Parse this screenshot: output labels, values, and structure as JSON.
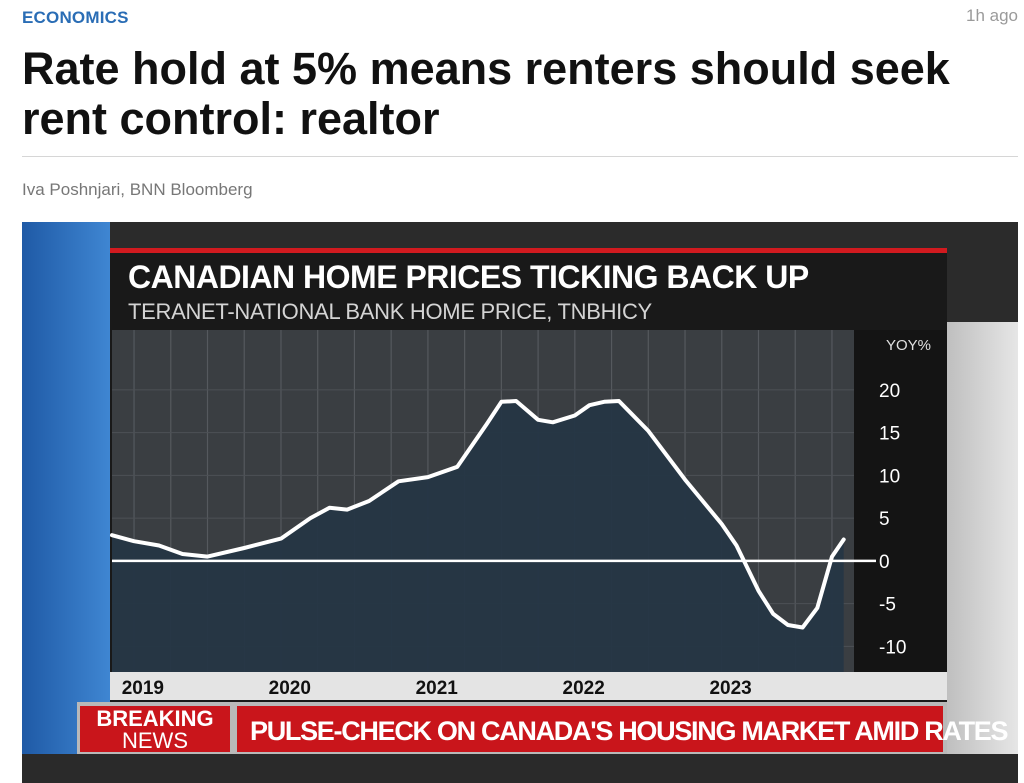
{
  "article": {
    "section": "ECONOMICS",
    "time_ago": "1h ago",
    "headline": "Rate hold at 5% means renters should seek rent control: realtor",
    "byline": "Iva Poshnjari, BNN Bloomberg"
  },
  "broadcast": {
    "breaking_line1": "BREAKING",
    "breaking_line2": "NEWS",
    "ticker": "PULSE-CHECK ON CANADA'S HOUSING MARKET AMID RATES"
  },
  "colors": {
    "section_blue": "#2a6db5",
    "breaking_red": "#c9151b",
    "chart_fill": "#253645",
    "chart_line": "#ffffff"
  },
  "chart_data": {
    "type": "area",
    "title": "CANADIAN HOME PRICES TICKING BACK UP",
    "subtitle": "TERANET-NATIONAL BANK HOME PRICE, TNBHICY",
    "ylabel": "YOY%",
    "ylim": [
      -13,
      27
    ],
    "y_ticks": [
      "20",
      "15",
      "10",
      "5",
      "0",
      "-5",
      "-10"
    ],
    "y_tick_values": [
      20,
      15,
      10,
      5,
      0,
      -5,
      -10
    ],
    "x_ticks": [
      "2019",
      "2020",
      "2021",
      "2022",
      "2023"
    ],
    "x_tick_values": [
      2019.0,
      2020.0,
      2021.0,
      2022.0,
      2023.0
    ],
    "xlim": [
      2018.85,
      2023.9
    ],
    "grid": true,
    "series": [
      {
        "x": [
          2018.85,
          2019.0,
          2019.17,
          2019.33,
          2019.5,
          2019.75,
          2020.0,
          2020.2,
          2020.33,
          2020.45,
          2020.6,
          2020.8,
          2021.0,
          2021.2,
          2021.4,
          2021.5,
          2021.6,
          2021.75,
          2021.85,
          2022.0,
          2022.1,
          2022.2,
          2022.3,
          2022.5,
          2022.75,
          2023.0,
          2023.1,
          2023.25,
          2023.35,
          2023.45,
          2023.55,
          2023.65,
          2023.75,
          2023.83
        ],
        "values": [
          3.0,
          2.3,
          1.8,
          0.8,
          0.5,
          1.5,
          2.6,
          5.0,
          6.2,
          6.0,
          7.0,
          9.3,
          9.8,
          11.0,
          16.0,
          18.6,
          18.7,
          16.5,
          16.2,
          17.0,
          18.2,
          18.6,
          18.7,
          15.2,
          9.5,
          4.3,
          1.8,
          -3.5,
          -6.2,
          -7.5,
          -7.8,
          -5.5,
          0.5,
          2.5
        ]
      }
    ],
    "zero_line": true
  }
}
